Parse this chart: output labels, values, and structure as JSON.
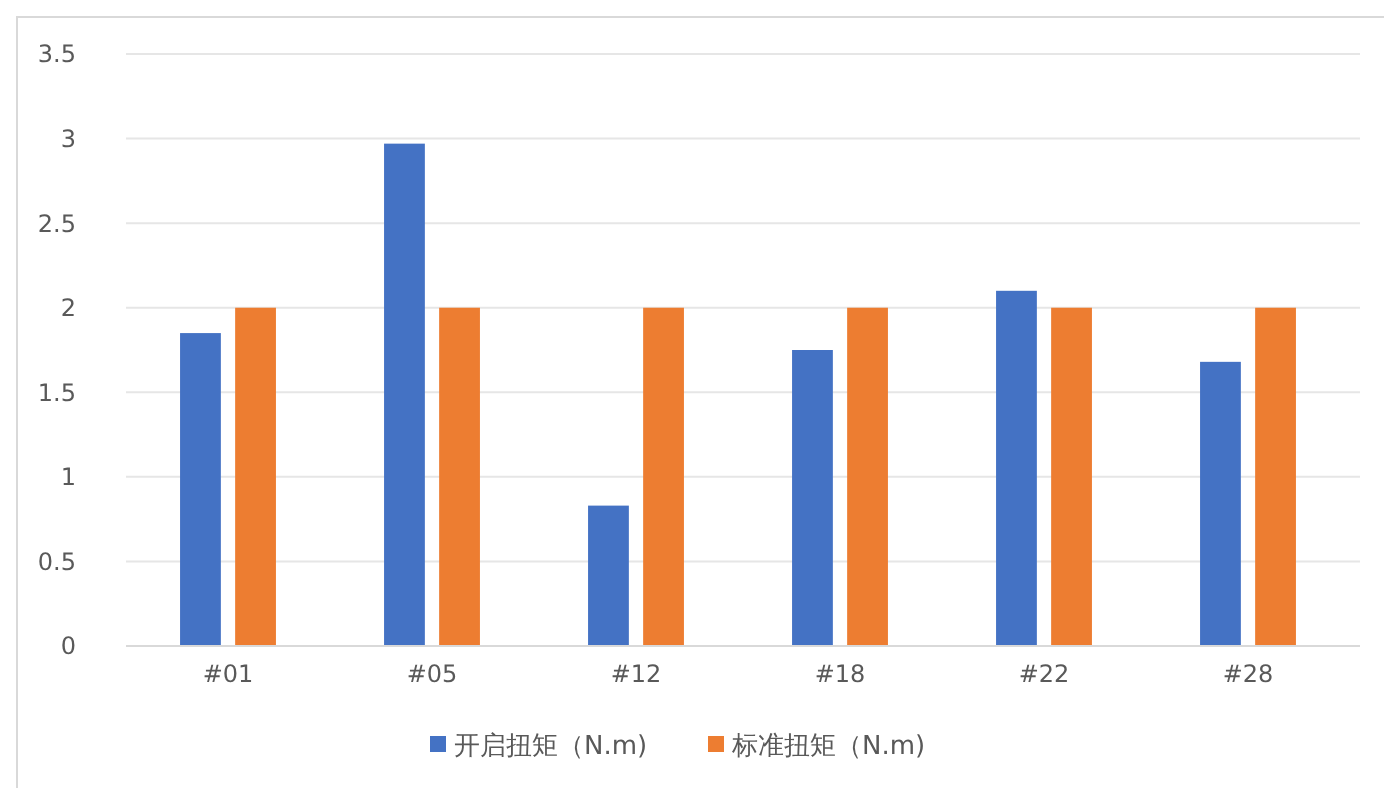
{
  "chart_data": {
    "type": "bar",
    "categories": [
      "#01",
      "#05",
      "#12",
      "#18",
      "#22",
      "#28"
    ],
    "series": [
      {
        "name": "开启扭矩（N.m)",
        "color": "#4472c4",
        "values": [
          1.85,
          2.97,
          0.83,
          1.75,
          2.1,
          1.68
        ]
      },
      {
        "name": "标准扭矩（N.m)",
        "color": "#ed7d31",
        "values": [
          2,
          2,
          2,
          2,
          2,
          2
        ]
      }
    ],
    "ylim": [
      0,
      3.5
    ],
    "yticks": [
      0,
      0.5,
      1,
      1.5,
      2,
      2.5,
      3,
      3.5
    ],
    "grid": "y",
    "legend": "bottom"
  }
}
